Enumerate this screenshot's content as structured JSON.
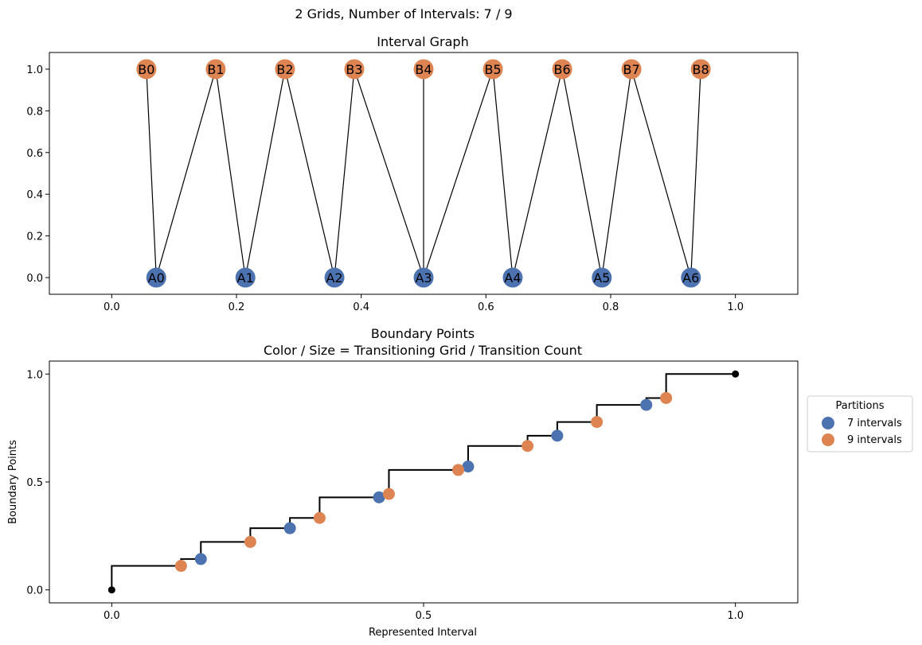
{
  "suptitle": "2 Grids, Number of Intervals: 7 / 9",
  "colors": {
    "gridA": "#4c72b0",
    "gridB": "#dd8452",
    "edge": "#000000",
    "endpoint": "#000000"
  },
  "chart_data": [
    {
      "type": "scatter",
      "title": "Interval Graph",
      "xlabel": "",
      "ylabel": "",
      "xlim": [
        -0.1,
        1.1
      ],
      "ylim": [
        -0.08,
        1.08
      ],
      "xticks": [
        "0.0",
        "0.2",
        "0.4",
        "0.6",
        "0.8",
        "1.0"
      ],
      "yticks": [
        "0.0",
        "0.2",
        "0.4",
        "0.6",
        "0.8",
        "1.0"
      ],
      "grid": false,
      "nodes": [
        {
          "label": "A0",
          "x": 0.0714,
          "y": 0,
          "group": "A"
        },
        {
          "label": "A1",
          "x": 0.2143,
          "y": 0,
          "group": "A"
        },
        {
          "label": "A2",
          "x": 0.3571,
          "y": 0,
          "group": "A"
        },
        {
          "label": "A3",
          "x": 0.5,
          "y": 0,
          "group": "A"
        },
        {
          "label": "A4",
          "x": 0.6429,
          "y": 0,
          "group": "A"
        },
        {
          "label": "A5",
          "x": 0.7857,
          "y": 0,
          "group": "A"
        },
        {
          "label": "A6",
          "x": 0.9286,
          "y": 0,
          "group": "A"
        },
        {
          "label": "B0",
          "x": 0.0556,
          "y": 1,
          "group": "B"
        },
        {
          "label": "B1",
          "x": 0.1667,
          "y": 1,
          "group": "B"
        },
        {
          "label": "B2",
          "x": 0.2778,
          "y": 1,
          "group": "B"
        },
        {
          "label": "B3",
          "x": 0.3889,
          "y": 1,
          "group": "B"
        },
        {
          "label": "B4",
          "x": 0.5,
          "y": 1,
          "group": "B"
        },
        {
          "label": "B5",
          "x": 0.6111,
          "y": 1,
          "group": "B"
        },
        {
          "label": "B6",
          "x": 0.7222,
          "y": 1,
          "group": "B"
        },
        {
          "label": "B7",
          "x": 0.8333,
          "y": 1,
          "group": "B"
        },
        {
          "label": "B8",
          "x": 0.9444,
          "y": 1,
          "group": "B"
        }
      ],
      "edges": [
        [
          "B0",
          "A0"
        ],
        [
          "A0",
          "B1"
        ],
        [
          "B1",
          "A1"
        ],
        [
          "A1",
          "B2"
        ],
        [
          "B2",
          "A2"
        ],
        [
          "A2",
          "B3"
        ],
        [
          "B3",
          "A3"
        ],
        [
          "B4",
          "A3"
        ],
        [
          "A3",
          "B5"
        ],
        [
          "B5",
          "A4"
        ],
        [
          "A4",
          "B6"
        ],
        [
          "B6",
          "A5"
        ],
        [
          "A5",
          "B7"
        ],
        [
          "B7",
          "A6"
        ],
        [
          "A6",
          "B8"
        ]
      ]
    },
    {
      "type": "scatter",
      "title": "Boundary Points",
      "subtitle": "Color / Size = Transitioning Grid / Transition Count",
      "xlabel": "Represented Interval",
      "ylabel": "Boundary Points",
      "xlim": [
        -0.1,
        1.1
      ],
      "ylim": [
        -0.06,
        1.06
      ],
      "xticks": [
        "0.0",
        "0.5",
        "1.0"
      ],
      "yticks": [
        "0.0",
        "0.5",
        "1.0"
      ],
      "grid": false,
      "legend": {
        "title": "Partitions",
        "placement": "outside-right",
        "entries": [
          "7 intervals",
          "9 intervals"
        ]
      },
      "step": [
        [
          0,
          0
        ],
        [
          0,
          0.1111
        ],
        [
          0.1111,
          0.1111
        ],
        [
          0.1111,
          0.1429
        ],
        [
          0.1429,
          0.1429
        ],
        [
          0.1429,
          0.2222
        ],
        [
          0.2222,
          0.2222
        ],
        [
          0.2222,
          0.2857
        ],
        [
          0.2857,
          0.2857
        ],
        [
          0.2857,
          0.3333
        ],
        [
          0.3333,
          0.3333
        ],
        [
          0.3333,
          0.4286
        ],
        [
          0.4286,
          0.4286
        ],
        [
          0.4286,
          0.4444
        ],
        [
          0.4444,
          0.4444
        ],
        [
          0.4444,
          0.5556
        ],
        [
          0.5556,
          0.5556
        ],
        [
          0.5556,
          0.5714
        ],
        [
          0.5714,
          0.5714
        ],
        [
          0.5714,
          0.6667
        ],
        [
          0.6667,
          0.6667
        ],
        [
          0.6667,
          0.7143
        ],
        [
          0.7143,
          0.7143
        ],
        [
          0.7143,
          0.7778
        ],
        [
          0.7778,
          0.7778
        ],
        [
          0.7778,
          0.8571
        ],
        [
          0.8571,
          0.8571
        ],
        [
          0.8571,
          0.8889
        ],
        [
          0.8889,
          0.8889
        ],
        [
          0.8889,
          1
        ],
        [
          1,
          1
        ]
      ],
      "endpoints": [
        [
          0,
          0
        ],
        [
          1,
          1
        ]
      ],
      "series": [
        {
          "name": "7 intervals",
          "x": [
            0.1429,
            0.2857,
            0.4286,
            0.5714,
            0.7143,
            0.8571
          ],
          "y": [
            0.1429,
            0.2857,
            0.4286,
            0.5714,
            0.7143,
            0.8571
          ]
        },
        {
          "name": "9 intervals",
          "x": [
            0.1111,
            0.2222,
            0.3333,
            0.4444,
            0.5556,
            0.6667,
            0.7778,
            0.8889
          ],
          "y": [
            0.1111,
            0.2222,
            0.3333,
            0.4444,
            0.5556,
            0.6667,
            0.7778,
            0.8889
          ]
        }
      ]
    }
  ]
}
